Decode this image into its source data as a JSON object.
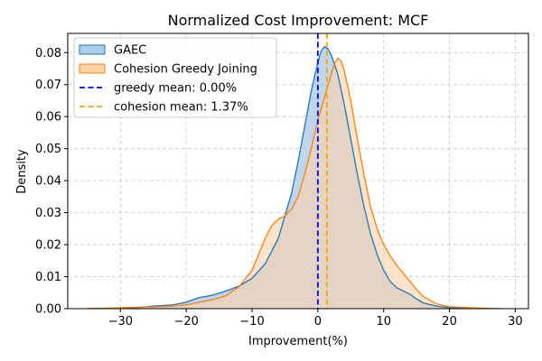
{
  "chart_data": {
    "type": "area",
    "title": "Normalized Cost Improvement: MCF",
    "xlabel": "Improvement(%)",
    "ylabel": "Density",
    "xlim": [
      -38,
      32
    ],
    "ylim": [
      0,
      0.086
    ],
    "xticks": [
      -30,
      -20,
      -10,
      0,
      10,
      20,
      30
    ],
    "xtick_labels": [
      "−30",
      "−20",
      "−10",
      "0",
      "10",
      "20",
      "30"
    ],
    "yticks": [
      0.0,
      0.01,
      0.02,
      0.03,
      0.04,
      0.05,
      0.06,
      0.07,
      0.08
    ],
    "ytick_labels": [
      "0.00",
      "0.01",
      "0.02",
      "0.03",
      "0.04",
      "0.05",
      "0.06",
      "0.07",
      "0.08"
    ],
    "grid": true,
    "legend_position": "top-left",
    "series": [
      {
        "name": "GAEC",
        "color": "#1f77b4",
        "fill": "#aecde8",
        "points": [
          [
            -35,
            0.0
          ],
          [
            -30,
            0.0002
          ],
          [
            -27,
            0.0004
          ],
          [
            -25,
            0.0008
          ],
          [
            -22,
            0.0012
          ],
          [
            -20,
            0.002
          ],
          [
            -18,
            0.0035
          ],
          [
            -16,
            0.0042
          ],
          [
            -14,
            0.0055
          ],
          [
            -12,
            0.007
          ],
          [
            -10,
            0.0095
          ],
          [
            -8,
            0.014
          ],
          [
            -6,
            0.022
          ],
          [
            -4,
            0.036
          ],
          [
            -3,
            0.046
          ],
          [
            -2,
            0.057
          ],
          [
            -1,
            0.068
          ],
          [
            0,
            0.077
          ],
          [
            0.5,
            0.0805
          ],
          [
            1,
            0.0818
          ],
          [
            1.5,
            0.0812
          ],
          [
            2,
            0.0795
          ],
          [
            3,
            0.0735
          ],
          [
            4,
            0.064
          ],
          [
            5,
            0.053
          ],
          [
            6,
            0.042
          ],
          [
            7,
            0.032
          ],
          [
            8,
            0.0235
          ],
          [
            9,
            0.017
          ],
          [
            10,
            0.012
          ],
          [
            11,
            0.0085
          ],
          [
            12,
            0.0065
          ],
          [
            13,
            0.0055
          ],
          [
            14,
            0.0045
          ],
          [
            15,
            0.003
          ],
          [
            16,
            0.0018
          ],
          [
            18,
            0.0008
          ],
          [
            20,
            0.0003
          ],
          [
            22,
            0.0001
          ],
          [
            25,
            0.0
          ]
        ]
      },
      {
        "name": "Cohesion Greedy Joining",
        "color": "#ff7f0e",
        "fill": "#ffd2a8",
        "points": [
          [
            -35,
            0.0
          ],
          [
            -30,
            0.0003
          ],
          [
            -27,
            0.0005
          ],
          [
            -24,
            0.0006
          ],
          [
            -22,
            0.0008
          ],
          [
            -20,
            0.0012
          ],
          [
            -18,
            0.002
          ],
          [
            -16,
            0.0028
          ],
          [
            -14,
            0.004
          ],
          [
            -12,
            0.0068
          ],
          [
            -10,
            0.012
          ],
          [
            -9,
            0.017
          ],
          [
            -8,
            0.022
          ],
          [
            -7,
            0.026
          ],
          [
            -6,
            0.028
          ],
          [
            -5,
            0.029
          ],
          [
            -4,
            0.031
          ],
          [
            -3,
            0.035
          ],
          [
            -2,
            0.042
          ],
          [
            -1,
            0.05
          ],
          [
            0,
            0.059
          ],
          [
            1,
            0.066
          ],
          [
            2,
            0.073
          ],
          [
            2.5,
            0.0765
          ],
          [
            3,
            0.0782
          ],
          [
            3.5,
            0.0775
          ],
          [
            4,
            0.0745
          ],
          [
            5,
            0.065
          ],
          [
            6,
            0.053
          ],
          [
            7,
            0.042
          ],
          [
            8,
            0.032
          ],
          [
            9,
            0.025
          ],
          [
            10,
            0.02
          ],
          [
            11,
            0.0165
          ],
          [
            12,
            0.0135
          ],
          [
            13,
            0.011
          ],
          [
            14,
            0.0085
          ],
          [
            15,
            0.006
          ],
          [
            16,
            0.0038
          ],
          [
            18,
            0.0015
          ],
          [
            20,
            0.0006
          ],
          [
            23,
            0.0003
          ],
          [
            26,
            0.0001
          ],
          [
            28,
            0.0
          ]
        ]
      }
    ],
    "reference_lines": [
      {
        "name": "greedy mean: 0.00%",
        "x": 0.0,
        "color": "#0000ff"
      },
      {
        "name": "cohesion mean: 1.37%",
        "x": 1.37,
        "color": "#ffa500"
      }
    ]
  }
}
